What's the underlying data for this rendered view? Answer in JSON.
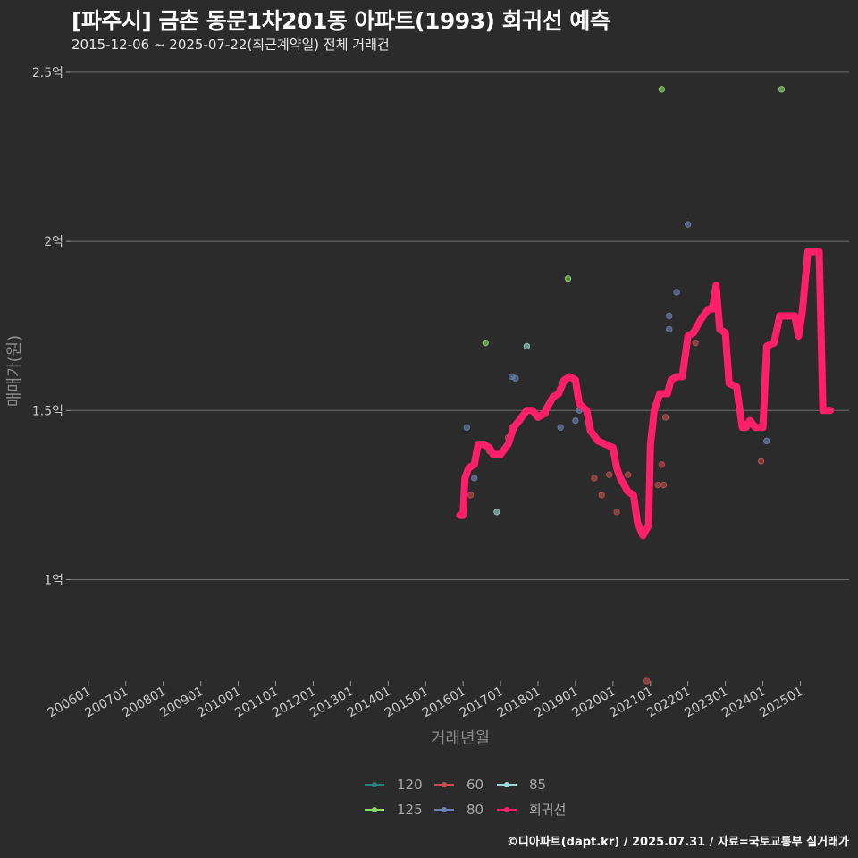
{
  "chart_data": {
    "type": "scatter",
    "title": "[파주시] 금촌 동문1차201동 아파트(1993) 회귀선 예측",
    "subtitle": "2015-12-06 ~ 2025-07-22(최근계약일) 전체 거래건",
    "xlabel": "거래년월",
    "ylabel": "매매가(원)",
    "ylim": [
      0.7,
      2.55
    ],
    "y_ticks": [
      1.0,
      1.5,
      2.0,
      2.5
    ],
    "y_tick_labels": [
      "1억",
      "1.5억",
      "2억",
      "2.5억"
    ],
    "xlim": [
      2005.55,
      2026.3
    ],
    "x_ticks": [
      2006,
      2007,
      2008,
      2009,
      2010,
      2011,
      2012,
      2013,
      2014,
      2015,
      2016,
      2017,
      2018,
      2019,
      2020,
      2021,
      2022,
      2023,
      2024,
      2025
    ],
    "x_tick_labels": [
      "200601",
      "200701",
      "200801",
      "200901",
      "201001",
      "201101",
      "201201",
      "201301",
      "201401",
      "201501",
      "201601",
      "201701",
      "201801",
      "201901",
      "202001",
      "202101",
      "202201",
      "202301",
      "202401",
      "202501"
    ],
    "grid": "horizontal",
    "legend_position": "bottom",
    "legend": [
      {
        "name": "120",
        "color": "#2f7f7a"
      },
      {
        "name": "60",
        "color": "#c0504d"
      },
      {
        "name": "85",
        "color": "#9fd8d6"
      },
      {
        "name": "125",
        "color": "#8fd96a"
      },
      {
        "name": "80",
        "color": "#6f82b0"
      },
      {
        "name": "회귀선",
        "color": "#ff1f6b"
      }
    ],
    "series": [
      {
        "name": "60",
        "color": "#c0504d",
        "points": [
          [
            2015.9,
            1.19
          ],
          [
            2016.2,
            1.25
          ],
          [
            2016.7,
            1.38
          ],
          [
            2017.2,
            1.42
          ],
          [
            2017.3,
            1.45
          ],
          [
            2018.2,
            1.49
          ],
          [
            2019.5,
            1.3
          ],
          [
            2019.7,
            1.25
          ],
          [
            2019.9,
            1.31
          ],
          [
            2020.1,
            1.2
          ],
          [
            2020.4,
            1.31
          ],
          [
            2020.9,
            0.7
          ],
          [
            2021.2,
            1.28
          ],
          [
            2021.3,
            1.34
          ],
          [
            2021.35,
            1.28
          ],
          [
            2021.4,
            1.48
          ],
          [
            2022.2,
            1.7
          ],
          [
            2023.95,
            1.35
          ]
        ]
      },
      {
        "name": "80",
        "color": "#6f82b0",
        "points": [
          [
            2016.1,
            1.45
          ],
          [
            2016.3,
            1.3
          ],
          [
            2017.3,
            1.6
          ],
          [
            2017.4,
            1.595
          ],
          [
            2018.6,
            1.45
          ],
          [
            2019.0,
            1.47
          ],
          [
            2019.1,
            1.5
          ],
          [
            2021.5,
            1.78
          ],
          [
            2021.5,
            1.74
          ],
          [
            2021.7,
            1.85
          ],
          [
            2022.0,
            2.05
          ],
          [
            2024.1,
            1.41
          ]
        ]
      },
      {
        "name": "85",
        "color": "#9fd8d6",
        "points": [
          [
            2016.9,
            1.2
          ],
          [
            2017.7,
            1.69
          ]
        ]
      },
      {
        "name": "120",
        "color": "#2f7f7a",
        "points": []
      },
      {
        "name": "125",
        "color": "#8fd96a",
        "points": [
          [
            2016.6,
            1.7
          ],
          [
            2018.8,
            1.89
          ],
          [
            2021.3,
            2.45
          ],
          [
            2024.5,
            2.45
          ]
        ]
      },
      {
        "name": "회귀선",
        "color": "#ff1f6b",
        "type": "line",
        "points": [
          [
            2015.92,
            1.19
          ],
          [
            2016.0,
            1.19
          ],
          [
            2016.05,
            1.3
          ],
          [
            2016.15,
            1.33
          ],
          [
            2016.3,
            1.34
          ],
          [
            2016.4,
            1.4
          ],
          [
            2016.55,
            1.4
          ],
          [
            2016.7,
            1.39
          ],
          [
            2016.8,
            1.37
          ],
          [
            2017.0,
            1.37
          ],
          [
            2017.2,
            1.4
          ],
          [
            2017.35,
            1.45
          ],
          [
            2017.5,
            1.47
          ],
          [
            2017.7,
            1.5
          ],
          [
            2017.85,
            1.5
          ],
          [
            2018.0,
            1.48
          ],
          [
            2018.15,
            1.49
          ],
          [
            2018.3,
            1.52
          ],
          [
            2018.4,
            1.54
          ],
          [
            2018.55,
            1.55
          ],
          [
            2018.7,
            1.59
          ],
          [
            2018.85,
            1.6
          ],
          [
            2019.0,
            1.59
          ],
          [
            2019.1,
            1.52
          ],
          [
            2019.3,
            1.5
          ],
          [
            2019.4,
            1.44
          ],
          [
            2019.6,
            1.41
          ],
          [
            2019.8,
            1.4
          ],
          [
            2020.0,
            1.39
          ],
          [
            2020.1,
            1.33
          ],
          [
            2020.2,
            1.3
          ],
          [
            2020.4,
            1.26
          ],
          [
            2020.55,
            1.25
          ],
          [
            2020.65,
            1.17
          ],
          [
            2020.8,
            1.13
          ],
          [
            2020.95,
            1.16
          ],
          [
            2021.0,
            1.4
          ],
          [
            2021.1,
            1.5
          ],
          [
            2021.25,
            1.55
          ],
          [
            2021.45,
            1.55
          ],
          [
            2021.55,
            1.59
          ],
          [
            2021.7,
            1.6
          ],
          [
            2021.85,
            1.6
          ],
          [
            2022.0,
            1.72
          ],
          [
            2022.15,
            1.73
          ],
          [
            2022.35,
            1.77
          ],
          [
            2022.55,
            1.8
          ],
          [
            2022.65,
            1.8
          ],
          [
            2022.75,
            1.87
          ],
          [
            2022.85,
            1.74
          ],
          [
            2023.0,
            1.73
          ],
          [
            2023.1,
            1.58
          ],
          [
            2023.3,
            1.57
          ],
          [
            2023.45,
            1.45
          ],
          [
            2023.55,
            1.45
          ],
          [
            2023.65,
            1.47
          ],
          [
            2023.8,
            1.45
          ],
          [
            2024.0,
            1.45
          ],
          [
            2024.1,
            1.69
          ],
          [
            2024.3,
            1.7
          ],
          [
            2024.45,
            1.78
          ],
          [
            2024.6,
            1.78
          ],
          [
            2024.85,
            1.78
          ],
          [
            2024.95,
            1.72
          ],
          [
            2025.05,
            1.79
          ],
          [
            2025.2,
            1.97
          ],
          [
            2025.5,
            1.97
          ],
          [
            2025.6,
            1.5
          ],
          [
            2025.8,
            1.5
          ]
        ]
      }
    ]
  },
  "footer": "©디아파트(dapt.kr) / 2025.07.31 / 자료=국토교통부 실거래가"
}
